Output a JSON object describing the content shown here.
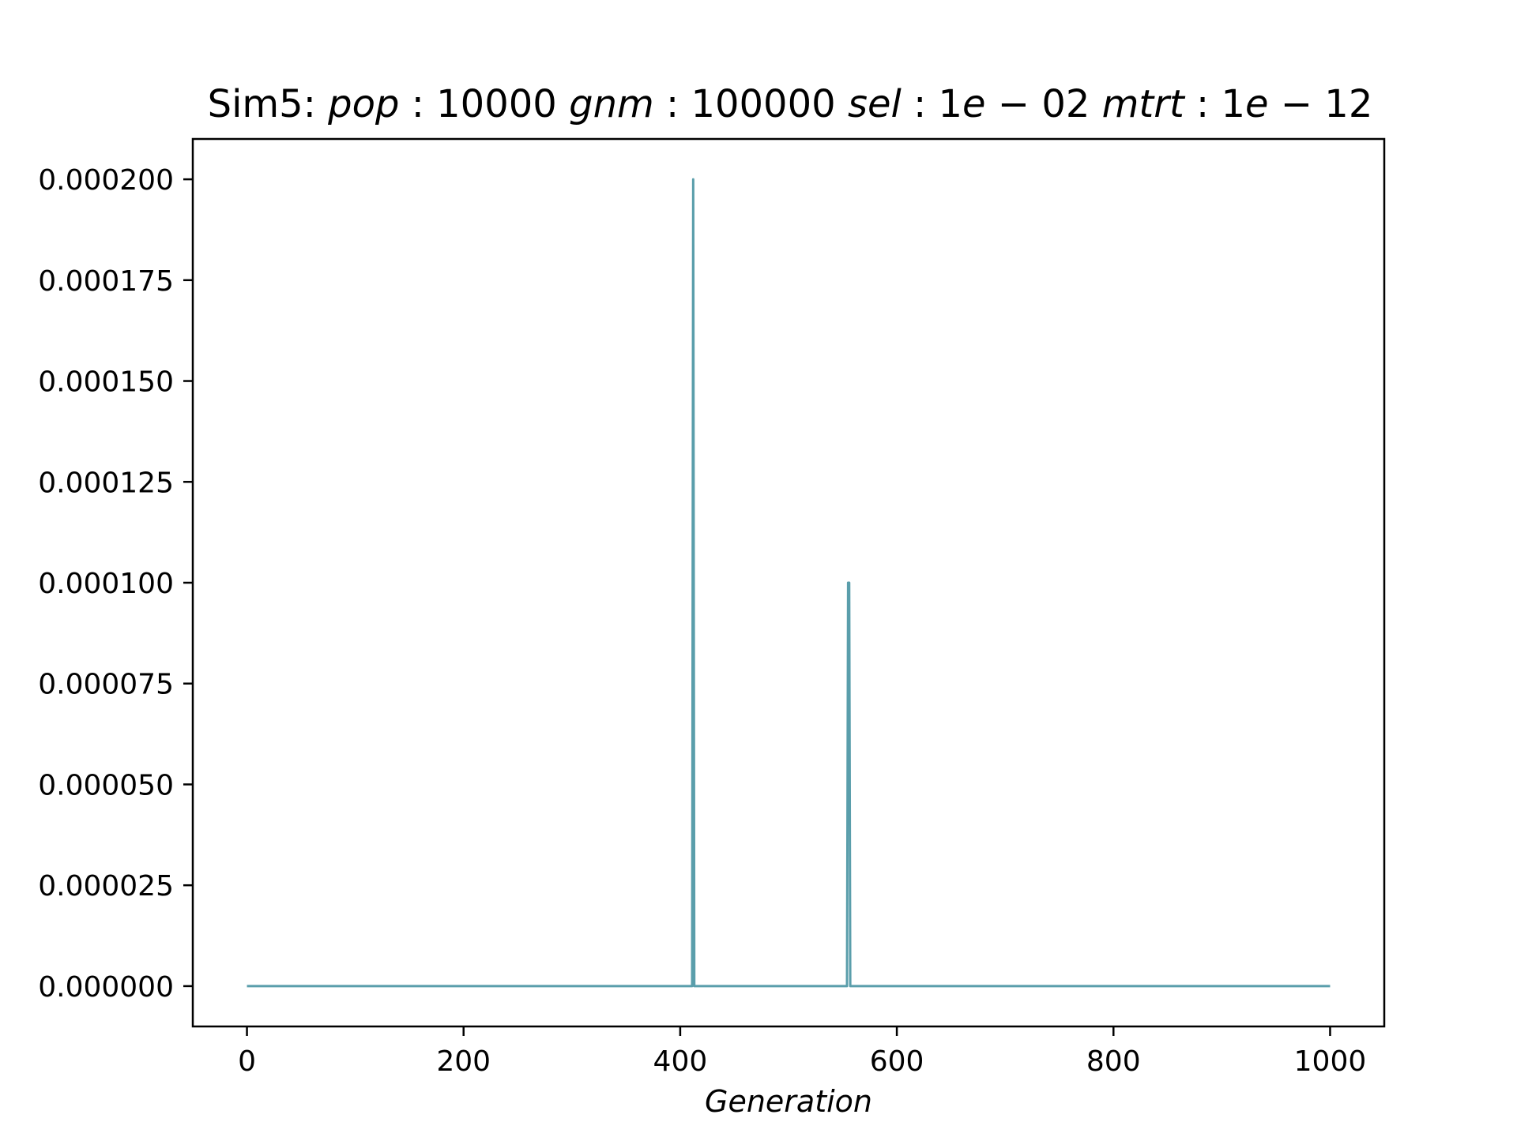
{
  "chart_data": {
    "type": "line",
    "title": {
      "parts": [
        {
          "text": "Sim5: ",
          "italic": false
        },
        {
          "text": "pop",
          "italic": true
        },
        {
          "text": " : 10000 ",
          "italic": false
        },
        {
          "text": "gnm",
          "italic": true
        },
        {
          "text": " : 100000 ",
          "italic": false
        },
        {
          "text": "sel",
          "italic": true
        },
        {
          "text": " : 1",
          "italic": false
        },
        {
          "text": "e",
          "italic": true
        },
        {
          "text": " − 02 ",
          "italic": false
        },
        {
          "text": "mtrt",
          "italic": true
        },
        {
          "text": " : 1",
          "italic": false
        },
        {
          "text": "e",
          "italic": true
        },
        {
          "text": " − 12",
          "italic": false
        }
      ]
    },
    "xlabel": "Generation",
    "ylabel": "",
    "xlim": [
      -50,
      1050
    ],
    "ylim": [
      -1e-05,
      0.00021
    ],
    "xticks": [
      0,
      200,
      400,
      600,
      800,
      1000
    ],
    "xtick_labels": [
      "0",
      "200",
      "400",
      "600",
      "800",
      "1000"
    ],
    "yticks": [
      0,
      2.5e-05,
      5e-05,
      7.5e-05,
      0.0001,
      0.000125,
      0.00015,
      0.000175,
      0.0002
    ],
    "ytick_labels": [
      "0.000000",
      "0.000025",
      "0.000050",
      "0.000075",
      "0.000100",
      "0.000125",
      "0.000150",
      "0.000175",
      "0.000200"
    ],
    "grid": false,
    "series": [
      {
        "color": "#5a9eab",
        "points": [
          [
            0,
            0
          ],
          [
            411,
            0
          ],
          [
            412,
            0.0002
          ],
          [
            413,
            0
          ],
          [
            554,
            0
          ],
          [
            555,
            0.0001
          ],
          [
            556,
            0.0001
          ],
          [
            557,
            0
          ],
          [
            1000,
            0
          ]
        ]
      }
    ]
  }
}
